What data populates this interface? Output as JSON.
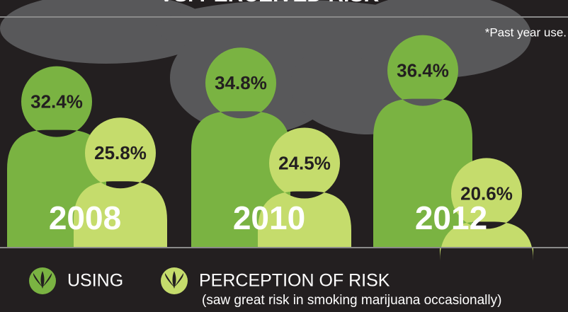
{
  "chart_data": {
    "type": "people",
    "title": "VS. PERCEIVED RISK",
    "note": "*Past year use.",
    "categories": [
      "2008",
      "2010",
      "2012"
    ],
    "series": [
      {
        "name": "USING",
        "color": "#7ab342",
        "values": [
          32.4,
          34.8,
          36.4
        ],
        "value_labels": [
          "32.4%",
          "34.8%",
          "36.4%"
        ]
      },
      {
        "name": "PERCEPTION OF RISK",
        "color": "#c5dc6c",
        "values": [
          25.8,
          24.5,
          20.6
        ],
        "value_labels": [
          "25.8%",
          "24.5%",
          "20.6%"
        ]
      }
    ],
    "legend_note": "(saw great risk in smoking marijuana occasionally)"
  }
}
